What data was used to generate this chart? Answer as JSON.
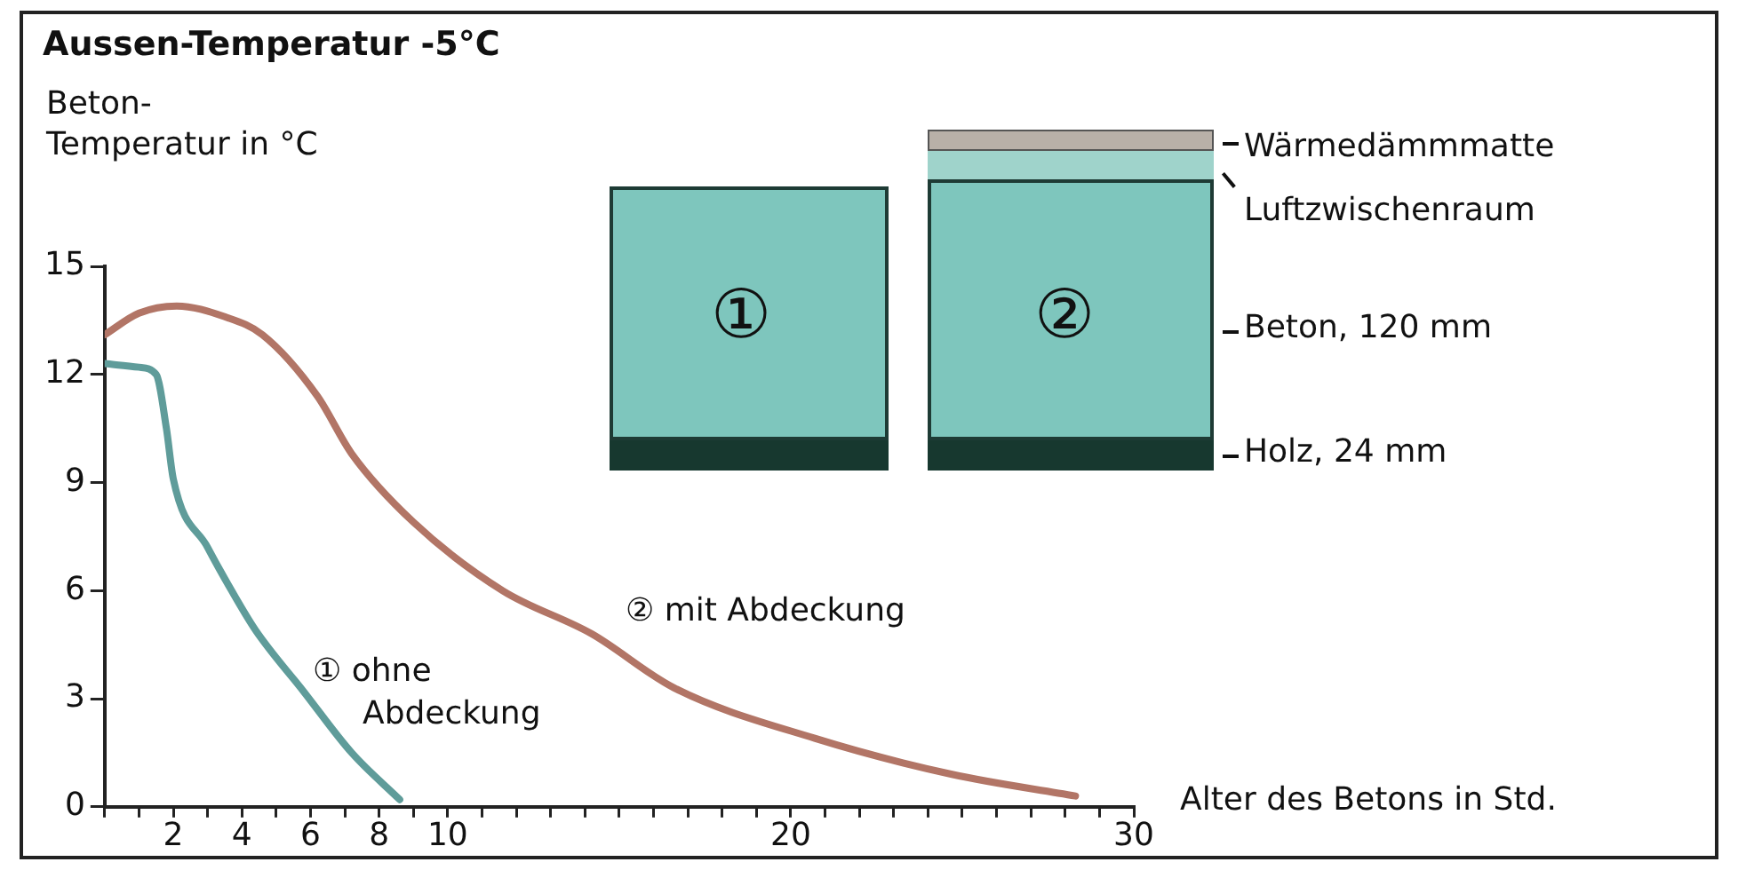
{
  "chart_data": {
    "type": "line",
    "title": "Aussen-Temperatur -5°C",
    "ylabel": "Beton-Temperatur in °C",
    "xlabel": "Alter des Betons in Std.",
    "xlim": [
      0,
      30
    ],
    "ylim": [
      0,
      15
    ],
    "xticks": [
      {
        "value": 0,
        "label": null
      },
      {
        "value": 1,
        "label": null
      },
      2,
      {
        "value": 3,
        "label": null
      },
      4,
      {
        "value": 5,
        "label": null
      },
      6,
      {
        "value": 7,
        "label": null
      },
      8,
      {
        "value": 9,
        "label": null
      },
      10,
      {
        "value": 11,
        "label": null
      },
      {
        "value": 12,
        "label": null
      },
      {
        "value": 13,
        "label": null
      },
      {
        "value": 14,
        "label": null
      },
      {
        "value": 15,
        "label": null
      },
      {
        "value": 16,
        "label": null
      },
      {
        "value": 17,
        "label": null
      },
      {
        "value": 18,
        "label": null
      },
      {
        "value": 19,
        "label": null
      },
      20,
      {
        "value": 21,
        "label": null
      },
      {
        "value": 22,
        "label": null
      },
      {
        "value": 23,
        "label": null
      },
      {
        "value": 24,
        "label": null
      },
      {
        "value": 25,
        "label": null
      },
      {
        "value": 26,
        "label": null
      },
      {
        "value": 27,
        "label": null
      },
      {
        "value": 28,
        "label": null
      },
      {
        "value": 29,
        "label": null
      },
      30
    ],
    "yticks": [
      0,
      3,
      6,
      9,
      12,
      15
    ],
    "grid": false,
    "legend": false,
    "marker": "none",
    "line_style": "solid",
    "series": [
      {
        "name": "① ohne Abdeckung",
        "color": "#5f9c9a",
        "x": [
          0,
          1,
          1.5,
          1.8,
          2,
          3,
          3.7,
          4.4,
          5.8,
          7.2,
          8.6
        ],
        "values": [
          12.3,
          12.2,
          12.0,
          10.5,
          9.1,
          7.2,
          6.0,
          4.9,
          3.2,
          1.5,
          0.2
        ]
      },
      {
        "name": "② mit Abdeckung",
        "color": "#b27566",
        "x": [
          0,
          1,
          2.1,
          3.5,
          4.6,
          6.2,
          7.2,
          9,
          11.6,
          14.2,
          16.6,
          20.7,
          24.7,
          28.3
        ],
        "values": [
          13.1,
          13.7,
          13.9,
          13.6,
          13.1,
          11.4,
          9.8,
          7.9,
          6.0,
          4.8,
          3.3,
          1.9,
          0.9,
          0.3
        ]
      }
    ],
    "annotations": [
      "①",
      "②",
      "Wärmedämmmatte",
      "Luftzwischenraum",
      "Beton, 120 mm",
      "Holz, 24 mm"
    ]
  }
}
